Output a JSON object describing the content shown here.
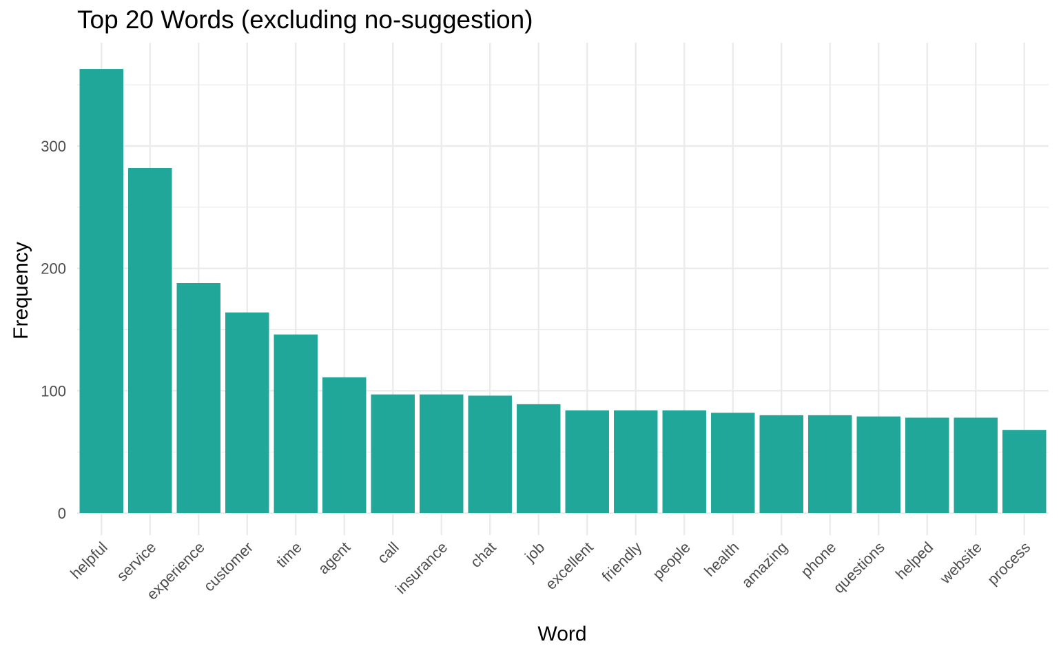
{
  "chart_data": {
    "type": "bar",
    "title": "Top 20 Words (excluding no-suggestion)",
    "xlabel": "Word",
    "ylabel": "Frequency",
    "categories": [
      "helpful",
      "service",
      "experience",
      "customer",
      "time",
      "agent",
      "call",
      "insurance",
      "chat",
      "job",
      "excellent",
      "friendly",
      "people",
      "health",
      "amazing",
      "phone",
      "questions",
      "helped",
      "website",
      "process"
    ],
    "values": [
      363,
      282,
      188,
      164,
      146,
      111,
      97,
      97,
      96,
      89,
      84,
      84,
      84,
      82,
      80,
      80,
      79,
      78,
      78,
      68
    ],
    "ylim": [
      0,
      375
    ],
    "yticks": [
      0,
      100,
      200,
      300
    ],
    "grid": true,
    "bar_color": "#21A69A",
    "grid_color": "#EBEBEB",
    "tick_label_color": "#4D4D4D"
  }
}
